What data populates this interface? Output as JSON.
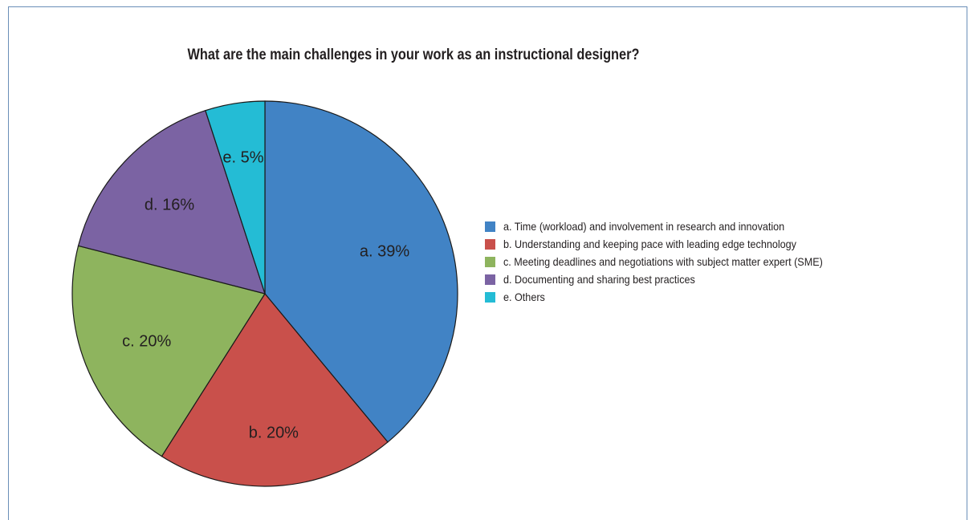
{
  "chart_data": {
    "type": "pie",
    "title": "What are the main challenges in your work as an instructional designer?",
    "slices": [
      {
        "key": "a",
        "percent": 39,
        "label": "a. 39%",
        "legend": "a. Time (workload) and involvement in research and innovation",
        "color": "#4183c5"
      },
      {
        "key": "b",
        "percent": 20,
        "label": "b. 20%",
        "legend": "b. Understanding and keeping pace with leading edge technology",
        "color": "#c9504b"
      },
      {
        "key": "c",
        "percent": 20,
        "label": "c. 20%",
        "legend": "c. Meeting deadlines and negotiations with subject matter expert (SME)",
        "color": "#8eb45e"
      },
      {
        "key": "d",
        "percent": 16,
        "label": "d. 16%",
        "legend": "d. Documenting and sharing best practices",
        "color": "#7b63a3"
      },
      {
        "key": "e",
        "percent": 5,
        "label": "e. 5%",
        "legend": "e. Others",
        "color": "#24bcd5"
      }
    ],
    "legend_position": "right",
    "start": "top",
    "direction": "clockwise"
  }
}
